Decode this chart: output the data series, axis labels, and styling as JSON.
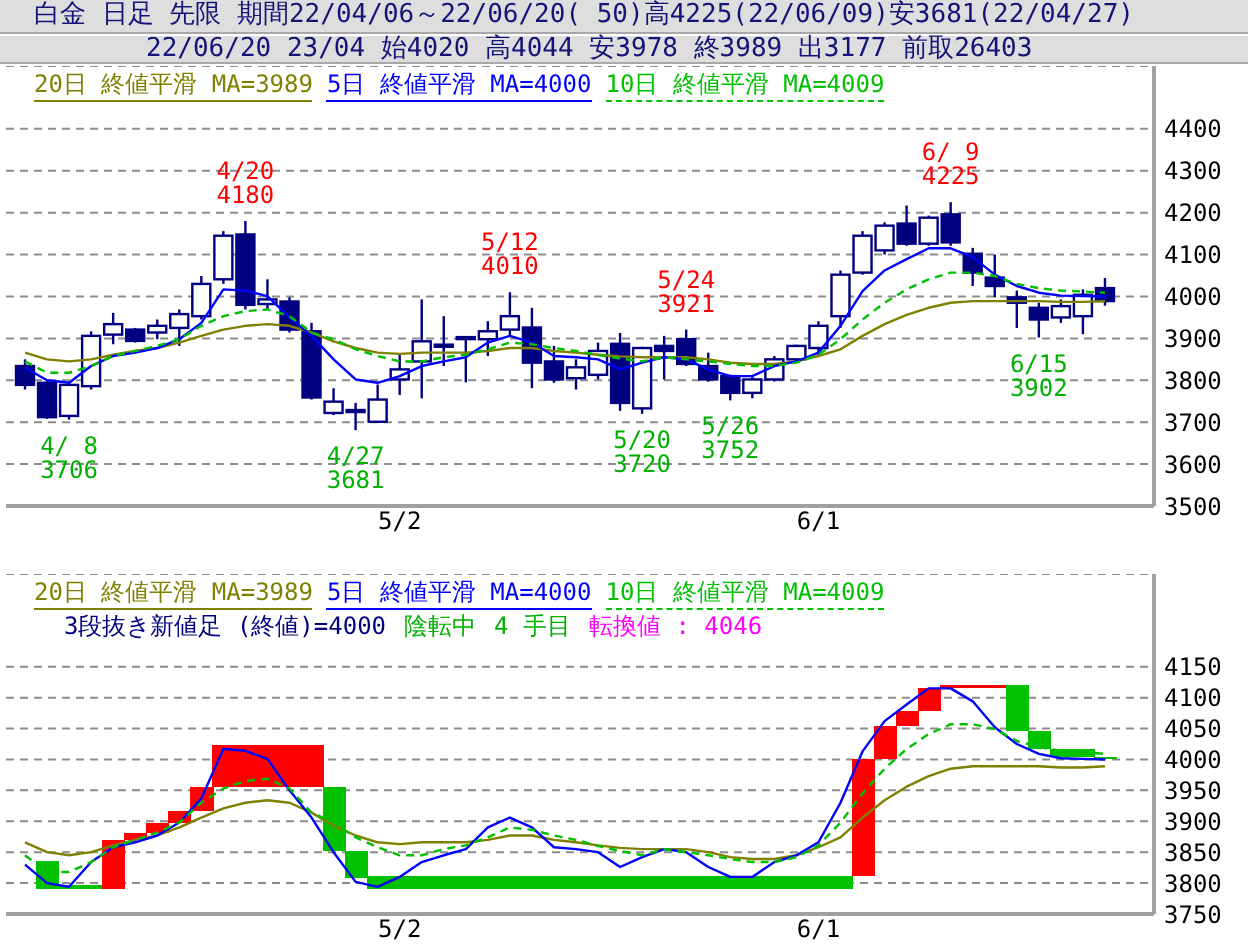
{
  "chart_data": [
    {
      "type": "candlestick",
      "title": "白金 日足 先限 期間22/04/06～22/06/20( 50)高4225(22/06/09)安3681(22/04/27)",
      "subtitle": "22/06/20 23/04 始4020 高4044 安3978 終3989 出3177 前取26403",
      "categories": [
        null,
        null,
        null,
        null,
        null,
        null,
        null,
        null,
        null,
        null,
        null,
        null,
        null,
        null,
        null,
        null,
        null,
        "5/2",
        null,
        null,
        null,
        null,
        null,
        null,
        null,
        null,
        null,
        null,
        null,
        null,
        null,
        null,
        null,
        null,
        null,
        null,
        "6/1",
        null,
        null,
        null,
        null,
        null,
        null,
        null,
        null,
        null,
        null,
        null,
        null,
        null
      ],
      "color": "#000080",
      "ohlc": [
        [
          3834,
          3850,
          3778,
          3789
        ],
        [
          3794,
          3800,
          3708,
          3712
        ],
        [
          3715,
          3795,
          3706,
          3789
        ],
        [
          3786,
          3917,
          3778,
          3906
        ],
        [
          3909,
          3961,
          3886,
          3934
        ],
        [
          3921,
          3925,
          3890,
          3894
        ],
        [
          3914,
          3945,
          3898,
          3930
        ],
        [
          3925,
          3969,
          3882,
          3958
        ],
        [
          3953,
          4049,
          3945,
          4030
        ],
        [
          4041,
          4156,
          4030,
          4145
        ],
        [
          4148,
          4180,
          3969,
          3980
        ],
        [
          3982,
          4041,
          3969,
          3993
        ],
        [
          3988,
          3998,
          3914,
          3921
        ],
        [
          3917,
          3937,
          3754,
          3759
        ],
        [
          3722,
          3781,
          3717,
          3749
        ],
        [
          3729,
          3746,
          3681,
          3726
        ],
        [
          3701,
          3790,
          3698,
          3754
        ],
        [
          3802,
          3861,
          3765,
          3826
        ],
        [
          3845,
          3993,
          3757,
          3893
        ],
        [
          3885,
          3953,
          3834,
          3880
        ],
        [
          3903,
          3905,
          3795,
          3902
        ],
        [
          3898,
          3941,
          3858,
          3917
        ],
        [
          3921,
          4010,
          3905,
          3953
        ],
        [
          3926,
          3973,
          3781,
          3842
        ],
        [
          3845,
          3882,
          3794,
          3802
        ],
        [
          3805,
          3850,
          3778,
          3831
        ],
        [
          3813,
          3890,
          3802,
          3870
        ],
        [
          3887,
          3913,
          3727,
          3746
        ],
        [
          3733,
          3880,
          3720,
          3877
        ],
        [
          3882,
          3906,
          3802,
          3870
        ],
        [
          3898,
          3921,
          3834,
          3839
        ],
        [
          3834,
          3866,
          3797,
          3802
        ],
        [
          3810,
          3813,
          3752,
          3770
        ],
        [
          3770,
          3813,
          3757,
          3802
        ],
        [
          3802,
          3858,
          3797,
          3850
        ],
        [
          3850,
          3885,
          3845,
          3882
        ],
        [
          3877,
          3941,
          3861,
          3930
        ],
        [
          3953,
          4062,
          3925,
          4052
        ],
        [
          4057,
          4156,
          4052,
          4145
        ],
        [
          4110,
          4177,
          4100,
          4169
        ],
        [
          4174,
          4217,
          4121,
          4126
        ],
        [
          4126,
          4193,
          4121,
          4188
        ],
        [
          4196,
          4225,
          4121,
          4129
        ],
        [
          4102,
          4116,
          4025,
          4057
        ],
        [
          4045,
          4100,
          3998,
          4025
        ],
        [
          3998,
          4014,
          3925,
          3985
        ],
        [
          3973,
          3985,
          3902,
          3945
        ],
        [
          3950,
          3993,
          3937,
          3977
        ],
        [
          3953,
          4017,
          3910,
          4004
        ],
        [
          4020,
          4044,
          3978,
          3989
        ]
      ],
      "series": [
        {
          "name": "20日 終値平滑 MA=3989",
          "type": "line",
          "color": "#808000",
          "values": [
            3866,
            3850,
            3845,
            3850,
            3861,
            3870,
            3877,
            3890,
            3906,
            3921,
            3930,
            3934,
            3930,
            3914,
            3893,
            3877,
            3866,
            3863,
            3866,
            3866,
            3866,
            3870,
            3877,
            3877,
            3870,
            3866,
            3861,
            3857,
            3855,
            3855,
            3855,
            3850,
            3842,
            3839,
            3839,
            3845,
            3858,
            3874,
            3906,
            3934,
            3956,
            3973,
            3985,
            3989,
            3989,
            3989,
            3989,
            3987,
            3987,
            3989
          ]
        },
        {
          "name": "5日 終値平滑 MA=4000",
          "type": "line",
          "color": "#0000ff",
          "values": [
            3830,
            3800,
            3794,
            3834,
            3858,
            3866,
            3877,
            3898,
            3937,
            4017,
            4014,
            4001,
            3950,
            3906,
            3850,
            3802,
            3794,
            3810,
            3834,
            3845,
            3855,
            3890,
            3906,
            3890,
            3858,
            3855,
            3850,
            3826,
            3842,
            3855,
            3850,
            3826,
            3810,
            3810,
            3834,
            3845,
            3866,
            3930,
            4013,
            4062,
            4089,
            4115,
            4115,
            4094,
            4052,
            4025,
            4009,
            4002,
            4001,
            4000
          ]
        },
        {
          "name": "10日 終値平滑 MA=4009",
          "type": "line",
          "color": "#00c000",
          "line_style": "dashed",
          "values": [
            3845,
            3818,
            3818,
            3834,
            3858,
            3870,
            3882,
            3898,
            3930,
            3953,
            3965,
            3969,
            3953,
            3914,
            3898,
            3874,
            3858,
            3845,
            3845,
            3855,
            3861,
            3874,
            3890,
            3886,
            3877,
            3870,
            3860,
            3852,
            3845,
            3855,
            3850,
            3845,
            3839,
            3834,
            3834,
            3842,
            3861,
            3898,
            3945,
            3985,
            4017,
            4041,
            4057,
            4057,
            4049,
            4030,
            4020,
            4014,
            4012,
            4009
          ]
        }
      ],
      "ylim": [
        3500,
        4550
      ],
      "yticks": [
        3500,
        3600,
        3700,
        3800,
        3900,
        4000,
        4100,
        4200,
        4300,
        4400
      ],
      "grid": "y",
      "legend": "top left",
      "annotations": [
        {
          "text": "4/ 8\n3706",
          "y": 3706
        },
        {
          "text": "4/20\n4180",
          "y": 4180
        },
        {
          "text": "4/27\n3681",
          "y": 3681
        },
        {
          "text": "5/12\n4010",
          "y": 4010
        },
        {
          "text": "5/20\n3720",
          "y": 3720
        },
        {
          "text": "5/24\n3921",
          "y": 3921
        },
        {
          "text": "5/26\n3752",
          "y": 3752
        },
        {
          "text": "6/ 9\n4225",
          "y": 4225
        },
        {
          "text": "6/15\n3902",
          "y": 3902
        }
      ]
    },
    {
      "type": "bar",
      "categories": [
        null,
        null,
        null,
        null,
        null,
        null,
        null,
        null,
        null,
        null,
        null,
        null,
        null,
        null,
        null,
        null,
        null,
        "5/2",
        null,
        null,
        null,
        null,
        null,
        null,
        null,
        null,
        null,
        null,
        null,
        null,
        null,
        null,
        null,
        null,
        null,
        null,
        "6/1",
        null,
        null,
        null,
        null,
        null,
        null,
        null,
        null,
        null,
        null,
        null,
        null,
        null
      ],
      "series": [
        {
          "type": "bar",
          "base": [
            null,
            3791,
            3791,
            3791,
            3791,
            3870,
            3881,
            3897,
            3916,
            3955,
            3955,
            3955,
            3955,
            3955,
            3852,
            3809,
            3791,
            3791,
            3791,
            3791,
            3791,
            3791,
            3791,
            3791,
            3791,
            3791,
            3791,
            3791,
            3791,
            3791,
            3791,
            3791,
            3791,
            3791,
            3791,
            3791,
            3791,
            3791,
            3812,
            4001,
            4054,
            4079,
            4116,
            4116,
            4116,
            4046,
            4017,
            4004,
            4004,
            4000
          ],
          "values": [
            null,
            45,
            6,
            6,
            79,
            11,
            16,
            19,
            39,
            68,
            68,
            68,
            68,
            68,
            103,
            43,
            21,
            21,
            21,
            21,
            21,
            21,
            21,
            21,
            21,
            21,
            21,
            21,
            21,
            21,
            21,
            21,
            21,
            21,
            21,
            21,
            21,
            21,
            189,
            53,
            25,
            37,
            5,
            5,
            5,
            75,
            29,
            13,
            13,
            4
          ],
          "colors": [
            null,
            "#00c000",
            "#00c000",
            "#00c000",
            "#ff0000",
            "#ff0000",
            "#ff0000",
            "#ff0000",
            "#ff0000",
            "#ff0000",
            "#ff0000",
            "#ff0000",
            "#ff0000",
            "#ff0000",
            "#00c000",
            "#00c000",
            "#00c000",
            "#00c000",
            "#00c000",
            "#00c000",
            "#00c000",
            "#00c000",
            "#00c000",
            "#00c000",
            "#00c000",
            "#00c000",
            "#00c000",
            "#00c000",
            "#00c000",
            "#00c000",
            "#00c000",
            "#00c000",
            "#00c000",
            "#00c000",
            "#00c000",
            "#00c000",
            "#00c000",
            "#00c000",
            "#ff0000",
            "#ff0000",
            "#ff0000",
            "#ff0000",
            "#ff0000",
            "#ff0000",
            "#ff0000",
            "#00c000",
            "#00c000",
            "#00c000",
            "#00c000",
            "#00c000"
          ]
        },
        {
          "name": "20日 終値平滑 MA=3989",
          "type": "line",
          "color": "#808000",
          "values": [
            3866,
            3850,
            3845,
            3850,
            3861,
            3870,
            3877,
            3890,
            3906,
            3921,
            3930,
            3934,
            3930,
            3914,
            3893,
            3877,
            3866,
            3863,
            3866,
            3866,
            3866,
            3870,
            3877,
            3877,
            3870,
            3866,
            3861,
            3857,
            3855,
            3855,
            3855,
            3850,
            3842,
            3839,
            3839,
            3845,
            3858,
            3874,
            3906,
            3934,
            3956,
            3973,
            3985,
            3989,
            3989,
            3989,
            3989,
            3987,
            3987,
            3989
          ]
        },
        {
          "name": "5日 終値平滑 MA=4000",
          "type": "line",
          "color": "#0000ff",
          "values": [
            3830,
            3800,
            3794,
            3834,
            3858,
            3866,
            3877,
            3898,
            3937,
            4017,
            4014,
            4001,
            3950,
            3906,
            3850,
            3802,
            3794,
            3810,
            3834,
            3845,
            3855,
            3890,
            3906,
            3890,
            3858,
            3855,
            3850,
            3826,
            3842,
            3855,
            3850,
            3826,
            3810,
            3810,
            3834,
            3845,
            3866,
            3930,
            4013,
            4062,
            4089,
            4115,
            4115,
            4094,
            4052,
            4025,
            4009,
            4002,
            4001,
            4000
          ]
        },
        {
          "name": "10日 終値平滑 MA=4009",
          "type": "line",
          "color": "#00c000",
          "line_style": "dashed",
          "values": [
            3845,
            3818,
            3818,
            3834,
            3858,
            3870,
            3882,
            3898,
            3930,
            3953,
            3965,
            3969,
            3953,
            3914,
            3898,
            3874,
            3858,
            3845,
            3845,
            3855,
            3861,
            3874,
            3890,
            3886,
            3877,
            3870,
            3860,
            3852,
            3845,
            3855,
            3850,
            3845,
            3839,
            3834,
            3834,
            3842,
            3861,
            3898,
            3945,
            3985,
            4017,
            4041,
            4057,
            4057,
            4049,
            4030,
            4020,
            4014,
            4012,
            4009
          ]
        }
      ],
      "ylim": [
        3750,
        4300
      ],
      "yticks": [
        3750,
        3800,
        3850,
        3900,
        3950,
        4000,
        4050,
        4100,
        4150
      ],
      "grid": "y",
      "legend": "top left",
      "annotations": [
        "3段抜き新値足 (終値)=4000",
        "陰転中",
        "4 手目",
        "転換値 : 4046"
      ]
    }
  ]
}
